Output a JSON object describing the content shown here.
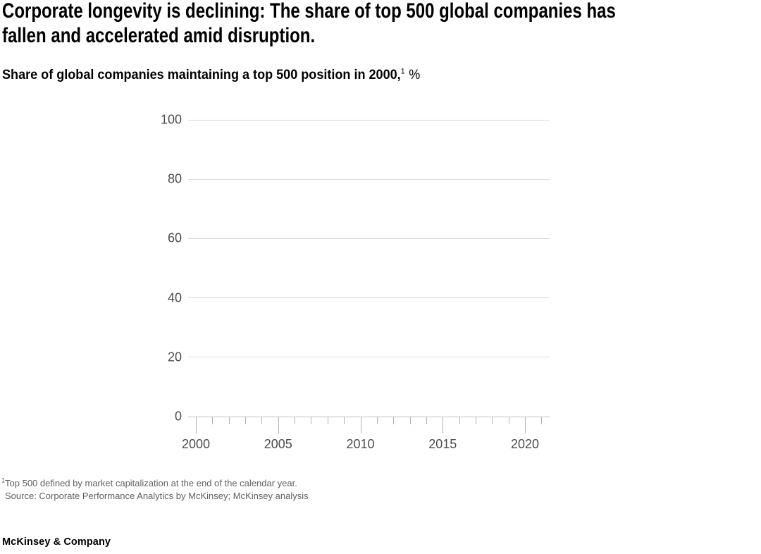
{
  "exhibit": {
    "title": "Corporate longevity is declining: The share of top 500 global companies has\nfallen and accelerated amid disruption.",
    "subtitle": {
      "main": "Share of global companies maintaining a top 500 position in 2000,",
      "superscript": "1",
      "unit": "%"
    },
    "footnotes": [
      {
        "superscript": "1",
        "text": "Top 500 defined by market capitalization at the end of the calendar year."
      },
      {
        "text": "Source: Corporate Performance Analytics by McKinsey; McKinsey analysis"
      }
    ],
    "logo": "McKinsey & Company"
  },
  "chart_data": {
    "type": "line",
    "title": "Share of global companies maintaining a top 500 position in 2000, %",
    "xlabel": "",
    "ylabel": "",
    "ylim": [
      0,
      100
    ],
    "yticks": [
      0,
      20,
      40,
      60,
      80,
      100
    ],
    "xlim": [
      1999.5,
      2021.5
    ],
    "xticks_major": [
      2000,
      2005,
      2010,
      2015,
      2020
    ],
    "xticks_minor": [
      2001,
      2002,
      2003,
      2004,
      2006,
      2007,
      2008,
      2009,
      2011,
      2012,
      2013,
      2014,
      2016,
      2017,
      2018,
      2019,
      2021
    ],
    "grid": "horizontal",
    "legend": "none",
    "series": []
  },
  "colors": {
    "gridline": "#d8d8d8",
    "axis_baseline": "#c2c2c2",
    "tick": "#b3b3b3",
    "axis_label": "#4d4d4d",
    "footnote": "#616161",
    "text": "#000000"
  }
}
